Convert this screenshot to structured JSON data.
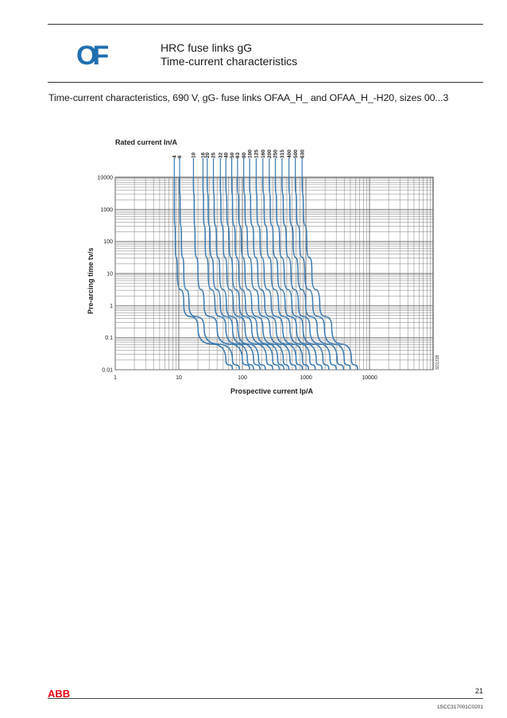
{
  "header": {
    "logo_text": "OF",
    "title_line1": "HRC fuse links gG",
    "title_line2": "Time-current characteristics"
  },
  "caption": "Time-current characteristics, 690 V, gG- fuse links OFAA_H_ and OFAA_H_-H20, sizes 00...3",
  "footer": {
    "brand": "ABB",
    "page_number": "21",
    "doc_number": "1SCC317001C0201"
  },
  "colors": {
    "curve": "#3a7ab0",
    "grid": "#6f6f6f",
    "logo": "#1f6fae",
    "brand": "#e30613"
  },
  "chart_data": {
    "type": "line",
    "title": "Rated current In/A",
    "xlabel": "Prospective current Ip/A",
    "ylabel": "Pre-arcing time tv/s",
    "x_scale": "log",
    "y_scale": "log",
    "xlim": [
      1,
      100000
    ],
    "ylim": [
      0.01,
      10000
    ],
    "x_ticks": [
      "1",
      "10",
      "100",
      "1000",
      "10000"
    ],
    "y_ticks": [
      "0.01",
      "0.1",
      "1",
      "10",
      "100",
      "1000",
      "10000"
    ],
    "grid": true,
    "figure_code": "SD131B",
    "series": [
      {
        "name": "4",
        "points": [
          [
            8.5,
            10000
          ],
          [
            8.5,
            1000
          ],
          [
            8.8,
            100
          ],
          [
            9.5,
            10
          ],
          [
            12,
            1
          ],
          [
            20,
            0.2
          ],
          [
            55,
            0.02
          ],
          [
            70,
            0.01
          ]
        ]
      },
      {
        "name": "6",
        "points": [
          [
            10.3,
            10000
          ],
          [
            10.5,
            1000
          ],
          [
            11,
            100
          ],
          [
            12,
            10
          ],
          [
            14.5,
            1
          ],
          [
            25,
            0.2
          ],
          [
            70,
            0.02
          ],
          [
            90,
            0.01
          ]
        ]
      },
      {
        "name": "10",
        "points": [
          [
            17,
            10000
          ],
          [
            17.5,
            1000
          ],
          [
            18,
            100
          ],
          [
            20,
            10
          ],
          [
            25,
            1
          ],
          [
            40,
            0.2
          ],
          [
            100,
            0.02
          ],
          [
            130,
            0.01
          ]
        ]
      },
      {
        "name": "16",
        "points": [
          [
            24,
            10000
          ],
          [
            24.5,
            1000
          ],
          [
            26,
            100
          ],
          [
            29,
            10
          ],
          [
            37,
            1
          ],
          [
            55,
            0.2
          ],
          [
            120,
            0.02
          ],
          [
            150,
            0.01
          ]
        ]
      },
      {
        "name": "20",
        "points": [
          [
            28,
            10000
          ],
          [
            29,
            1000
          ],
          [
            31,
            100
          ],
          [
            35,
            10
          ],
          [
            45,
            1
          ],
          [
            70,
            0.2
          ],
          [
            150,
            0.02
          ],
          [
            190,
            0.01
          ]
        ]
      },
      {
        "name": "25",
        "points": [
          [
            35,
            10000
          ],
          [
            36,
            1000
          ],
          [
            39,
            100
          ],
          [
            44,
            10
          ],
          [
            56,
            1
          ],
          [
            85,
            0.2
          ],
          [
            180,
            0.02
          ],
          [
            230,
            0.01
          ]
        ]
      },
      {
        "name": "32",
        "points": [
          [
            45,
            10000
          ],
          [
            46,
            1000
          ],
          [
            50,
            100
          ],
          [
            57,
            10
          ],
          [
            72,
            1
          ],
          [
            110,
            0.2
          ],
          [
            240,
            0.02
          ],
          [
            300,
            0.01
          ]
        ]
      },
      {
        "name": "40",
        "points": [
          [
            55,
            10000
          ],
          [
            57,
            1000
          ],
          [
            62,
            100
          ],
          [
            70,
            10
          ],
          [
            90,
            1
          ],
          [
            140,
            0.2
          ],
          [
            300,
            0.02
          ],
          [
            380,
            0.01
          ]
        ]
      },
      {
        "name": "50",
        "points": [
          [
            68,
            10000
          ],
          [
            70,
            1000
          ],
          [
            77,
            100
          ],
          [
            88,
            10
          ],
          [
            112,
            1
          ],
          [
            170,
            0.2
          ],
          [
            360,
            0.02
          ],
          [
            450,
            0.01
          ]
        ]
      },
      {
        "name": "63",
        "points": [
          [
            84,
            10000
          ],
          [
            87,
            1000
          ],
          [
            96,
            100
          ],
          [
            110,
            10
          ],
          [
            140,
            1
          ],
          [
            210,
            0.2
          ],
          [
            440,
            0.02
          ],
          [
            540,
            0.01
          ]
        ]
      },
      {
        "name": "80",
        "points": [
          [
            105,
            10000
          ],
          [
            110,
            1000
          ],
          [
            120,
            100
          ],
          [
            140,
            10
          ],
          [
            180,
            1
          ],
          [
            270,
            0.2
          ],
          [
            560,
            0.02
          ],
          [
            700,
            0.01
          ]
        ]
      },
      {
        "name": "100",
        "points": [
          [
            130,
            10000
          ],
          [
            135,
            1000
          ],
          [
            150,
            100
          ],
          [
            175,
            10
          ],
          [
            225,
            1
          ],
          [
            340,
            0.2
          ],
          [
            700,
            0.02
          ],
          [
            880,
            0.01
          ]
        ]
      },
      {
        "name": "125",
        "points": [
          [
            165,
            10000
          ],
          [
            170,
            1000
          ],
          [
            190,
            100
          ],
          [
            220,
            10
          ],
          [
            285,
            1
          ],
          [
            430,
            0.2
          ],
          [
            880,
            0.02
          ],
          [
            1100,
            0.01
          ]
        ]
      },
      {
        "name": "160",
        "points": [
          [
            210,
            10000
          ],
          [
            220,
            1000
          ],
          [
            245,
            100
          ],
          [
            285,
            10
          ],
          [
            370,
            1
          ],
          [
            560,
            0.2
          ],
          [
            1150,
            0.02
          ],
          [
            1400,
            0.01
          ]
        ]
      },
      {
        "name": "200",
        "points": [
          [
            265,
            10000
          ],
          [
            275,
            1000
          ],
          [
            305,
            100
          ],
          [
            360,
            10
          ],
          [
            470,
            1
          ],
          [
            710,
            0.2
          ],
          [
            1450,
            0.02
          ],
          [
            1800,
            0.01
          ]
        ]
      },
      {
        "name": "250",
        "points": [
          [
            330,
            10000
          ],
          [
            345,
            1000
          ],
          [
            385,
            100
          ],
          [
            455,
            10
          ],
          [
            600,
            1
          ],
          [
            900,
            0.2
          ],
          [
            1850,
            0.02
          ],
          [
            2300,
            0.01
          ]
        ]
      },
      {
        "name": "315",
        "points": [
          [
            420,
            10000
          ],
          [
            440,
            1000
          ],
          [
            490,
            100
          ],
          [
            580,
            10
          ],
          [
            760,
            1
          ],
          [
            1150,
            0.2
          ],
          [
            2400,
            0.02
          ],
          [
            3000,
            0.01
          ]
        ]
      },
      {
        "name": "400",
        "points": [
          [
            540,
            10000
          ],
          [
            560,
            1000
          ],
          [
            630,
            100
          ],
          [
            750,
            10
          ],
          [
            990,
            1
          ],
          [
            1500,
            0.2
          ],
          [
            3100,
            0.02
          ],
          [
            3900,
            0.01
          ]
        ]
      },
      {
        "name": "500",
        "points": [
          [
            680,
            10000
          ],
          [
            710,
            1000
          ],
          [
            800,
            100
          ],
          [
            960,
            10
          ],
          [
            1280,
            1
          ],
          [
            1950,
            0.2
          ],
          [
            4000,
            0.02
          ],
          [
            5000,
            0.01
          ]
        ]
      },
      {
        "name": "630",
        "points": [
          [
            870,
            10000
          ],
          [
            910,
            1000
          ],
          [
            1030,
            100
          ],
          [
            1240,
            10
          ],
          [
            1650,
            1
          ],
          [
            2550,
            0.2
          ],
          [
            5200,
            0.02
          ],
          [
            6500,
            0.01
          ]
        ]
      }
    ]
  }
}
